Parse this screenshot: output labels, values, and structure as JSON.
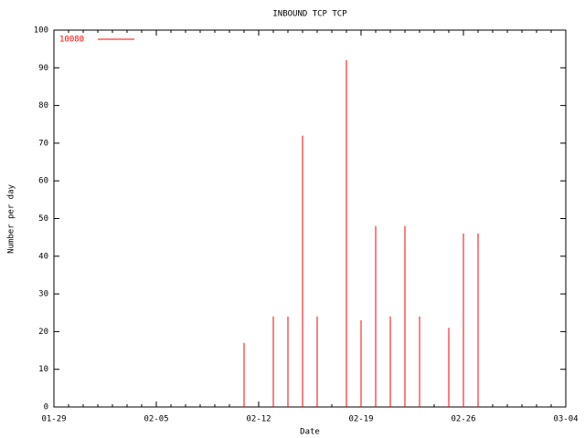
{
  "chart_data": {
    "type": "impulse",
    "title": "INBOUND TCP TCP",
    "x_label": "Date",
    "y_label": "Number per day",
    "x": [
      "02-11",
      "02-13",
      "02-14",
      "02-15",
      "02-16",
      "02-18",
      "02-19",
      "02-20",
      "02-21",
      "02-22",
      "02-23",
      "02-25",
      "02-26",
      "02-27"
    ],
    "series": [
      {
        "name": "10080",
        "color": "#ff0000",
        "values": [
          17,
          24,
          24,
          72,
          24,
          92,
          23,
          48,
          24,
          48,
          24,
          21,
          46,
          46
        ]
      }
    ],
    "xlim": [
      "01-29",
      "03-04"
    ],
    "xticks": [
      "01-29",
      "02-05",
      "02-12",
      "02-19",
      "02-26",
      "03-04"
    ],
    "ylim": [
      0,
      100
    ],
    "yticks": [
      0,
      10,
      20,
      30,
      40,
      50,
      60,
      70,
      80,
      90,
      100
    ],
    "legend": "top-left"
  }
}
